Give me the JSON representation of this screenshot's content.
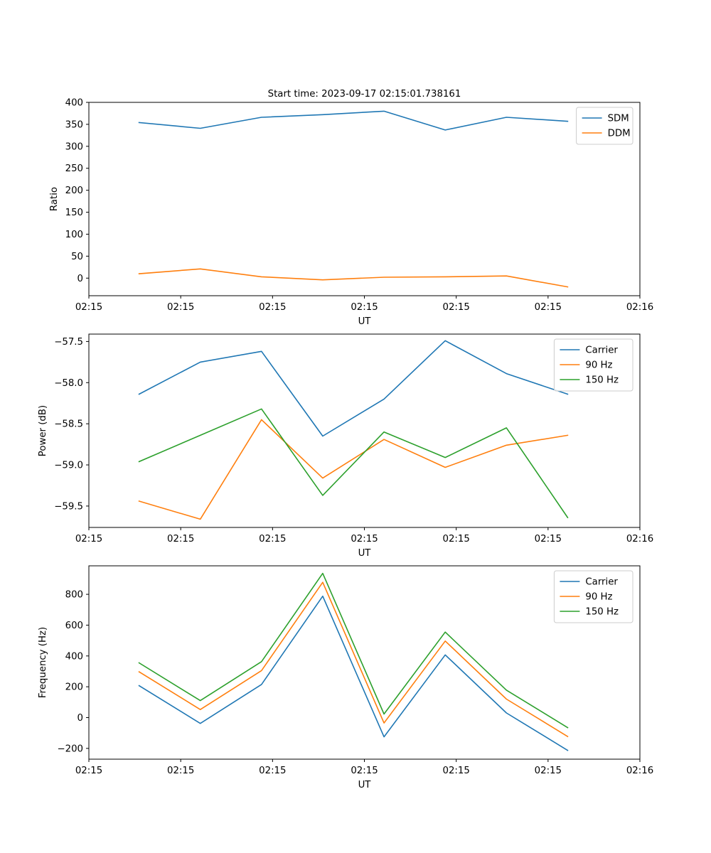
{
  "figure_title": "Start time: 2023-09-17 02:15:01.738161",
  "chart_data": [
    {
      "type": "line",
      "title": "Start time: 2023-09-17 02:15:01.738161",
      "xlabel": "UT",
      "ylabel": "Ratio",
      "x": [
        1,
        2,
        3,
        4,
        5,
        6,
        7,
        8
      ],
      "xlim": [
        0.18,
        9.18
      ],
      "xticks": [
        0.18,
        1.68,
        3.18,
        4.68,
        6.18,
        7.68,
        9.18
      ],
      "xtick_labels": [
        "02:15",
        "02:15",
        "02:15",
        "02:15",
        "02:15",
        "02:15",
        "02:16"
      ],
      "ylim": [
        -40,
        400
      ],
      "yticks": [
        0,
        50,
        100,
        150,
        200,
        250,
        300,
        350,
        400
      ],
      "ytick_labels": [
        "0",
        "50",
        "100",
        "150",
        "200",
        "250",
        "300",
        "350",
        "400"
      ],
      "legend_position": "top-right",
      "series": [
        {
          "name": "SDM",
          "color": "#1f77b4",
          "values": [
            354,
            341,
            366,
            372,
            380,
            337,
            366,
            357
          ]
        },
        {
          "name": "DDM",
          "color": "#ff7f0e",
          "values": [
            10,
            21,
            3,
            -4,
            2,
            3,
            5,
            -20
          ]
        }
      ]
    },
    {
      "type": "line",
      "title": "",
      "xlabel": "UT",
      "ylabel": "Power (dB)",
      "x": [
        1,
        2,
        3,
        4,
        5,
        6,
        7,
        8
      ],
      "xlim": [
        0.18,
        9.18
      ],
      "xticks": [
        0.18,
        1.68,
        3.18,
        4.68,
        6.18,
        7.68,
        9.18
      ],
      "xtick_labels": [
        "02:15",
        "02:15",
        "02:15",
        "02:15",
        "02:15",
        "02:15",
        "02:16"
      ],
      "ylim": [
        -59.76,
        -57.41
      ],
      "yticks": [
        -59.5,
        -59.0,
        -58.5,
        -58.0,
        -57.5
      ],
      "ytick_labels": [
        "−59.5",
        "−59.0",
        "−58.5",
        "−58.0",
        "−57.5"
      ],
      "legend_position": "top-right",
      "series": [
        {
          "name": "Carrier",
          "color": "#1f77b4",
          "values": [
            -58.14,
            -57.75,
            -57.62,
            -58.65,
            -58.2,
            -57.49,
            -57.89,
            -58.14
          ]
        },
        {
          "name": "90 Hz",
          "color": "#ff7f0e",
          "values": [
            -59.44,
            -59.66,
            -58.45,
            -59.16,
            -58.69,
            -59.03,
            -58.76,
            -58.64
          ]
        },
        {
          "name": "150 Hz",
          "color": "#2ca02c",
          "values": [
            -58.96,
            -58.64,
            -58.32,
            -59.37,
            -58.6,
            -58.91,
            -58.55,
            -59.64
          ]
        }
      ]
    },
    {
      "type": "line",
      "title": "",
      "xlabel": "UT",
      "ylabel": "Frequency (Hz)",
      "x": [
        1,
        2,
        3,
        4,
        5,
        6,
        7,
        8
      ],
      "xlim": [
        0.18,
        9.18
      ],
      "xticks": [
        0.18,
        1.68,
        3.18,
        4.68,
        6.18,
        7.68,
        9.18
      ],
      "xtick_labels": [
        "02:15",
        "02:15",
        "02:15",
        "02:15",
        "02:15",
        "02:15",
        "02:16"
      ],
      "ylim": [
        -270,
        985
      ],
      "yticks": [
        -200,
        0,
        200,
        400,
        600,
        800
      ],
      "ytick_labels": [
        "−200",
        "0",
        "200",
        "400",
        "600",
        "800"
      ],
      "legend_position": "top-right",
      "series": [
        {
          "name": "Carrier",
          "color": "#1f77b4",
          "values": [
            207,
            -38,
            215,
            788,
            -125,
            407,
            30,
            -213
          ]
        },
        {
          "name": "90 Hz",
          "color": "#ff7f0e",
          "values": [
            297,
            52,
            305,
            878,
            -35,
            497,
            120,
            -123
          ]
        },
        {
          "name": "150 Hz",
          "color": "#2ca02c",
          "values": [
            355,
            110,
            363,
            936,
            23,
            555,
            178,
            -65
          ]
        }
      ]
    }
  ]
}
